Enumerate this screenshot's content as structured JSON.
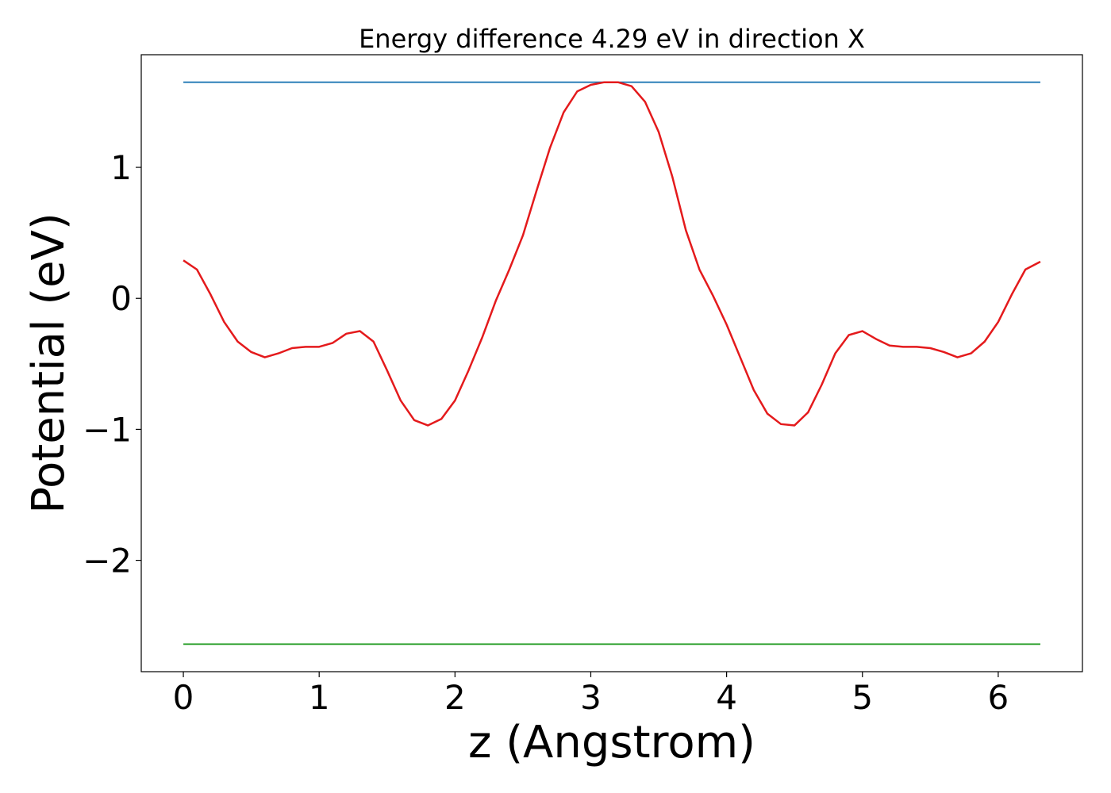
{
  "chart_data": {
    "type": "line",
    "title": "Energy difference 4.29 eV in direction X",
    "xlabel": "z (Angstrom)",
    "ylabel": "Potential (eV)",
    "xlim": [
      -0.31,
      6.62
    ],
    "ylim": [
      -2.85,
      1.86
    ],
    "xticks": [
      0,
      1,
      2,
      3,
      4,
      5,
      6
    ],
    "yticks": [
      -2,
      -1,
      0,
      1
    ],
    "xtick_labels": [
      "0",
      "1",
      "2",
      "3",
      "4",
      "5",
      "6"
    ],
    "ytick_labels": [
      "−2",
      "−1",
      "0",
      "1"
    ],
    "grid": false,
    "series": [
      {
        "color": "#1f77b4",
        "x": [
          0,
          6.31
        ],
        "y": [
          1.65,
          1.65
        ]
      },
      {
        "color": "#2ca02c",
        "x": [
          0,
          6.31
        ],
        "y": [
          -2.64,
          -2.64
        ]
      },
      {
        "color": "#e41a1c",
        "x": [
          0,
          0.1,
          0.2,
          0.3,
          0.4,
          0.5,
          0.6,
          0.7,
          0.8,
          0.9,
          1.0,
          1.1,
          1.2,
          1.3,
          1.4,
          1.5,
          1.6,
          1.7,
          1.8,
          1.9,
          2.0,
          2.1,
          2.2,
          2.3,
          2.4,
          2.5,
          2.6,
          2.7,
          2.8,
          2.9,
          3.0,
          3.1,
          3.15,
          3.2,
          3.3,
          3.4,
          3.5,
          3.6,
          3.7,
          3.8,
          3.9,
          4.0,
          4.1,
          4.2,
          4.3,
          4.4,
          4.5,
          4.6,
          4.7,
          4.8,
          4.9,
          5.0,
          5.1,
          5.2,
          5.3,
          5.4,
          5.5,
          5.6,
          5.7,
          5.8,
          5.9,
          6.0,
          6.1,
          6.2,
          6.31
        ],
        "y": [
          0.29,
          0.22,
          0.03,
          -0.18,
          -0.33,
          -0.41,
          -0.45,
          -0.42,
          -0.38,
          -0.37,
          -0.37,
          -0.34,
          -0.27,
          -0.25,
          -0.33,
          -0.55,
          -0.78,
          -0.93,
          -0.97,
          -0.92,
          -0.78,
          -0.55,
          -0.3,
          -0.02,
          0.22,
          0.48,
          0.82,
          1.15,
          1.42,
          1.58,
          1.63,
          1.65,
          1.65,
          1.65,
          1.62,
          1.5,
          1.27,
          0.93,
          0.52,
          0.22,
          0.02,
          -0.2,
          -0.45,
          -0.7,
          -0.88,
          -0.96,
          -0.97,
          -0.87,
          -0.66,
          -0.42,
          -0.28,
          -0.25,
          -0.31,
          -0.36,
          -0.37,
          -0.37,
          -0.38,
          -0.41,
          -0.45,
          -0.42,
          -0.33,
          -0.18,
          0.03,
          0.22,
          0.28
        ]
      }
    ]
  }
}
